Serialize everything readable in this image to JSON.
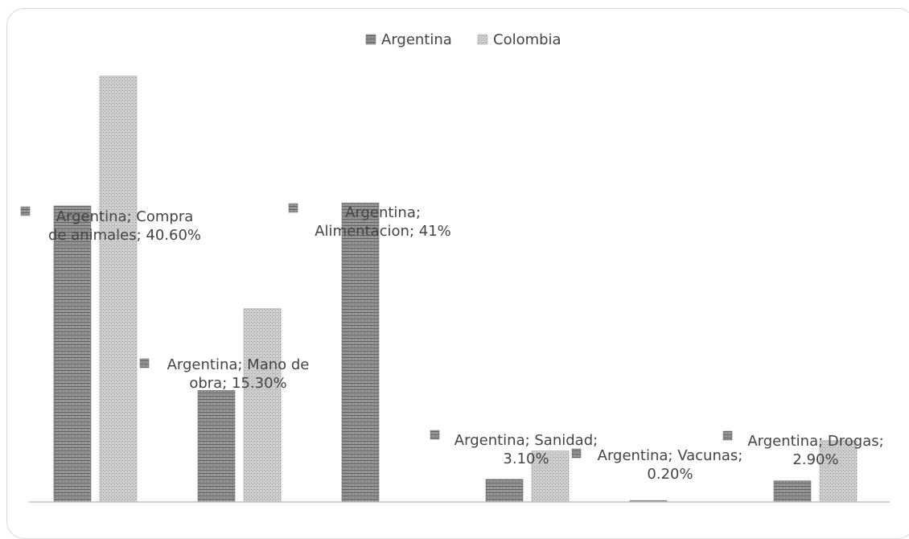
{
  "chart_data": {
    "type": "bar",
    "title": "",
    "xlabel": "",
    "ylabel": "",
    "categories": [
      "Compra de animales",
      "Mano de obra",
      "Alimentacion",
      "Sanidad",
      "Vacunas",
      "Drogas"
    ],
    "series": [
      {
        "name": "Argentina",
        "values": [
          40.6,
          15.3,
          41,
          3.1,
          0.2,
          2.9
        ]
      },
      {
        "name": "Colombia",
        "values": [
          58.4,
          26.5,
          0,
          7.0,
          0,
          8.4
        ]
      }
    ],
    "ylim": [
      0,
      62
    ],
    "grid": false,
    "legend_position": "top",
    "data_labels": [
      [
        "Argentina; Compra",
        "de animales; 40.60%"
      ],
      [
        "Argentina; Mano de",
        "obra; 15.30%"
      ],
      [
        "Argentina;",
        "Alimentacion; 41%"
      ],
      [
        "Argentina; Sanidad;",
        "3.10%"
      ],
      [
        "Argentina; Vacunas;",
        "0.20%"
      ],
      [
        "Argentina; Drogas;",
        "2.90%"
      ]
    ],
    "colors": {
      "Argentina": "#8c8c8c",
      "Colombia": "#c8c8c8"
    }
  }
}
